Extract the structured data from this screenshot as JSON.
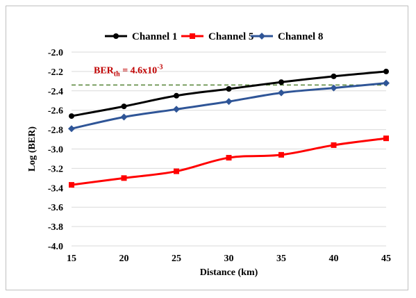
{
  "chart_data": {
    "type": "line",
    "title": "",
    "xlabel": "Distance (km)",
    "ylabel": "Log (BER)",
    "x": [
      15,
      20,
      25,
      30,
      35,
      40,
      45
    ],
    "x_tick_labels": [
      "15",
      "20",
      "25",
      "30",
      "35",
      "40",
      "45"
    ],
    "xlim": [
      15,
      45
    ],
    "ylim": [
      -4.0,
      -2.0
    ],
    "y_ticks": [
      -2.0,
      -2.2,
      -2.4,
      -2.6,
      -2.8,
      -3.0,
      -3.2,
      -3.4,
      -3.6,
      -3.8,
      -4.0
    ],
    "y_tick_labels": [
      "-2.0",
      "-2.2",
      "-2.4",
      "-2.6",
      "-2.8",
      "-3.0",
      "-3.2",
      "-3.4",
      "-3.6",
      "-3.8",
      "-4.0"
    ],
    "grid": "horizontal",
    "legend_position": "top",
    "series": [
      {
        "name": "Channel 1",
        "color": "#000000",
        "marker": "circle",
        "values": [
          -2.66,
          -2.56,
          -2.45,
          -2.38,
          -2.31,
          -2.25,
          -2.2
        ]
      },
      {
        "name": "Channel 5",
        "color": "#ff0000",
        "marker": "square",
        "values": [
          -3.37,
          -3.3,
          -3.23,
          -3.09,
          -3.06,
          -2.96,
          -2.89
        ]
      },
      {
        "name": "Channel 8",
        "color": "#2f5597",
        "marker": "diamond",
        "values": [
          -2.79,
          -2.67,
          -2.59,
          -2.51,
          -2.42,
          -2.37,
          -2.32
        ]
      }
    ],
    "threshold": {
      "value": -2.34,
      "color": "#548235",
      "style": "dashed",
      "label_main": "BER",
      "label_sub": "th",
      "label_rest": " = 4.6x10",
      "label_sup": "-3",
      "label_color": "#c00000"
    }
  }
}
